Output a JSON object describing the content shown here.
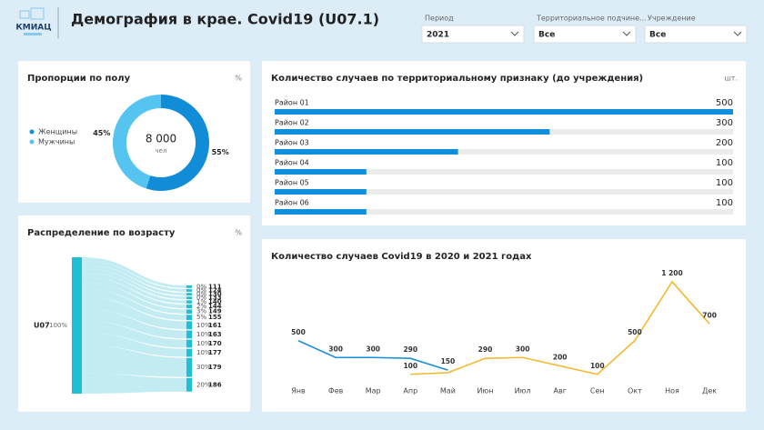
{
  "header": {
    "logo": "КМИАЦ",
    "title": "Демография в крае. Covid19 (U07.1)"
  },
  "filters": [
    {
      "label": "Период",
      "value": "2021"
    },
    {
      "label": "Территориальное подчине...",
      "value": "Все"
    },
    {
      "label": "Учреждение",
      "value": "Все"
    }
  ],
  "chart_data": [
    {
      "type": "pie",
      "title": "Пропорции по полу",
      "unit": "%",
      "categories": [
        "Женщины",
        "Мужчины"
      ],
      "values": [
        55,
        45
      ],
      "value_labels": [
        "55%",
        "45%"
      ],
      "colors": [
        "#118dd8",
        "#55c4f1"
      ],
      "center": {
        "value": 8000,
        "label": "8 000"
      },
      "center_unit": "чел",
      "legend": "left"
    },
    {
      "type": "sankey",
      "title": "Распределение по возрасту",
      "unit": "%",
      "source": "U07",
      "source_value": {
        "value": 100,
        "label": "100%"
      },
      "targets": [
        "111",
        "124",
        "130",
        "133",
        "140",
        "144",
        "149",
        "155",
        "161",
        "163",
        "170",
        "177",
        "179",
        "186"
      ],
      "values": [
        0,
        0,
        0,
        0,
        1,
        2,
        3,
        5,
        10,
        10,
        10,
        10,
        30,
        20
      ],
      "value_labels": [
        "0%",
        "0%",
        "0%",
        "0%",
        "1%",
        "2%",
        "3%",
        "5%",
        "10%",
        "10%",
        "10%",
        "10%",
        "30%",
        "20%"
      ],
      "color": "#1fbfd5",
      "flow_color": "#aee6ee"
    },
    {
      "type": "bar",
      "orientation": "horizontal",
      "title": "Количество случаев по территориальному признаку (до учреждения)",
      "unit": "шт.",
      "categories": [
        "Район 01",
        "Район 02",
        "Район 03",
        "Район 04",
        "Район 05",
        "Район 06"
      ],
      "values": [
        500,
        300,
        200,
        100,
        100,
        100
      ],
      "color": "#0f8fdc"
    },
    {
      "type": "line",
      "title": "Количество случаев Covid19 в 2020 и 2021 годах",
      "categories": [
        "Янв",
        "Фев",
        "Мар",
        "Апр",
        "Май",
        "Июн",
        "Июл",
        "Авг",
        "Сен",
        "Окт",
        "Ноя",
        "Дек"
      ],
      "series": [
        {
          "color": "#1a8fd6",
          "values": [
            500,
            300,
            300,
            290,
            150,
            null,
            null,
            null,
            null,
            null,
            null,
            null
          ],
          "value_labels": [
            "500",
            "300",
            "300",
            "290",
            "150",
            null,
            null,
            null,
            null,
            null,
            null,
            null
          ]
        },
        {
          "color": "#f5b82e",
          "values": [
            null,
            null,
            null,
            100,
            120,
            290,
            300,
            200,
            100,
            500,
            1200,
            700
          ],
          "value_labels": [
            null,
            null,
            null,
            "100",
            null,
            "290",
            "300",
            "200",
            "100",
            "500",
            "1 200",
            "700"
          ]
        }
      ]
    }
  ]
}
